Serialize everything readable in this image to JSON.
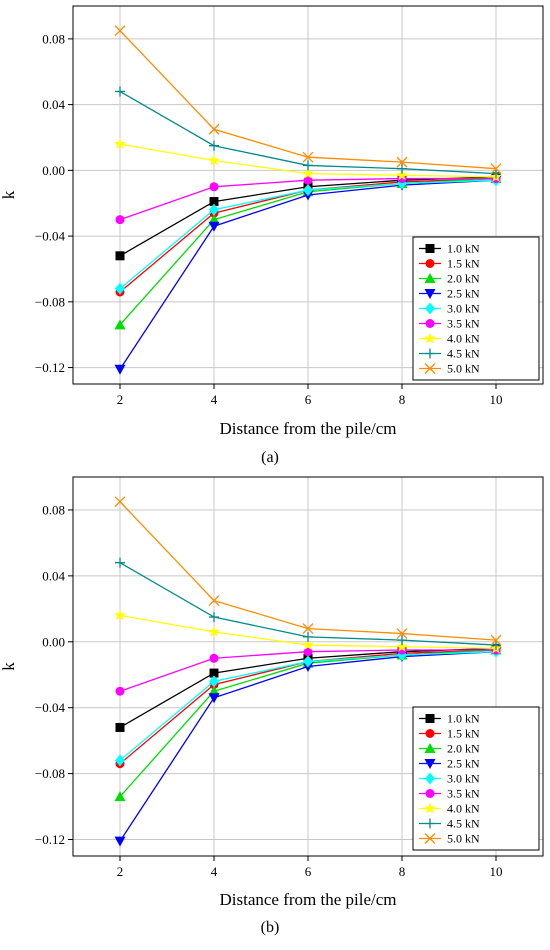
{
  "chart_data": [
    {
      "type": "line",
      "panel_label": "(a)",
      "xlabel": "Distance from the pile/cm",
      "ylabel": "k",
      "x": [
        2,
        4,
        6,
        8,
        10
      ],
      "xlim": [
        1,
        11
      ],
      "ylim": [
        -0.13,
        0.1
      ],
      "xticks": [
        "2",
        "4",
        "6",
        "8",
        "10"
      ],
      "yticks": [
        "0.08",
        "0.04",
        "0.00",
        "−0.04",
        "−0.08",
        "−0.12"
      ],
      "ytick_values": [
        0.08,
        0.04,
        0.0,
        -0.04,
        -0.08,
        -0.12
      ],
      "grid": true,
      "legend_position": "bottom-right",
      "series": [
        {
          "name": "1.0 kN",
          "color": "#000000",
          "marker": "square",
          "values": [
            -0.052,
            -0.019,
            -0.01,
            -0.006,
            -0.004
          ]
        },
        {
          "name": "1.5 kN",
          "color": "#ff0000",
          "marker": "circle",
          "values": [
            -0.074,
            -0.026,
            -0.012,
            -0.007,
            -0.005
          ]
        },
        {
          "name": "2.0 kN",
          "color": "#00dd00",
          "marker": "triangle-up",
          "values": [
            -0.094,
            -0.03,
            -0.013,
            -0.008,
            -0.005
          ]
        },
        {
          "name": "2.5 kN",
          "color": "#0000ff",
          "marker": "triangle-down",
          "values": [
            -0.121,
            -0.034,
            -0.015,
            -0.009,
            -0.006
          ]
        },
        {
          "name": "3.0 kN",
          "color": "#00ffff",
          "marker": "diamond",
          "values": [
            -0.072,
            -0.024,
            -0.012,
            -0.008,
            -0.006
          ]
        },
        {
          "name": "3.5 kN",
          "color": "#ff00ff",
          "marker": "circle",
          "values": [
            -0.03,
            -0.01,
            -0.006,
            -0.005,
            -0.005
          ]
        },
        {
          "name": "4.0 kN",
          "color": "#ffff00",
          "marker": "star",
          "values": [
            0.016,
            0.006,
            -0.002,
            -0.003,
            -0.004
          ]
        },
        {
          "name": "4.5 kN",
          "color": "#008b8b",
          "marker": "plus",
          "values": [
            0.048,
            0.015,
            0.003,
            0.001,
            -0.002
          ]
        },
        {
          "name": "5.0 kN",
          "color": "#ff8c00",
          "marker": "x",
          "values": [
            0.085,
            0.025,
            0.008,
            0.005,
            0.001
          ]
        }
      ]
    },
    {
      "type": "line",
      "panel_label": "(b)",
      "xlabel": "Distance from the pile/cm",
      "ylabel": "k",
      "x": [
        2,
        4,
        6,
        8,
        10
      ],
      "xlim": [
        1,
        11
      ],
      "ylim": [
        -0.13,
        0.1
      ],
      "xticks": [
        "2",
        "4",
        "6",
        "8",
        "10"
      ],
      "yticks": [
        "0.08",
        "0.04",
        "0.00",
        "−0.04",
        "−0.08",
        "−0.12"
      ],
      "ytick_values": [
        0.08,
        0.04,
        0.0,
        -0.04,
        -0.08,
        -0.12
      ],
      "grid": true,
      "legend_position": "bottom-right",
      "series": [
        {
          "name": "1.0 kN",
          "color": "#000000",
          "marker": "square",
          "values": [
            -0.052,
            -0.019,
            -0.01,
            -0.006,
            -0.004
          ]
        },
        {
          "name": "1.5 kN",
          "color": "#ff0000",
          "marker": "circle",
          "values": [
            -0.074,
            -0.026,
            -0.012,
            -0.007,
            -0.005
          ]
        },
        {
          "name": "2.0 kN",
          "color": "#00dd00",
          "marker": "triangle-up",
          "values": [
            -0.094,
            -0.03,
            -0.013,
            -0.008,
            -0.005
          ]
        },
        {
          "name": "2.5 kN",
          "color": "#0000ff",
          "marker": "triangle-down",
          "values": [
            -0.121,
            -0.034,
            -0.015,
            -0.009,
            -0.006
          ]
        },
        {
          "name": "3.0 kN",
          "color": "#00ffff",
          "marker": "diamond",
          "values": [
            -0.072,
            -0.024,
            -0.012,
            -0.008,
            -0.006
          ]
        },
        {
          "name": "3.5 kN",
          "color": "#ff00ff",
          "marker": "circle",
          "values": [
            -0.03,
            -0.01,
            -0.006,
            -0.005,
            -0.005
          ]
        },
        {
          "name": "4.0 kN",
          "color": "#ffff00",
          "marker": "star",
          "values": [
            0.016,
            0.006,
            -0.002,
            -0.003,
            -0.004
          ]
        },
        {
          "name": "4.5 kN",
          "color": "#008b8b",
          "marker": "plus",
          "values": [
            0.048,
            0.015,
            0.003,
            0.001,
            -0.002
          ]
        },
        {
          "name": "5.0 kN",
          "color": "#ff8c00",
          "marker": "x",
          "values": [
            0.085,
            0.025,
            0.008,
            0.005,
            0.001
          ]
        }
      ]
    }
  ]
}
